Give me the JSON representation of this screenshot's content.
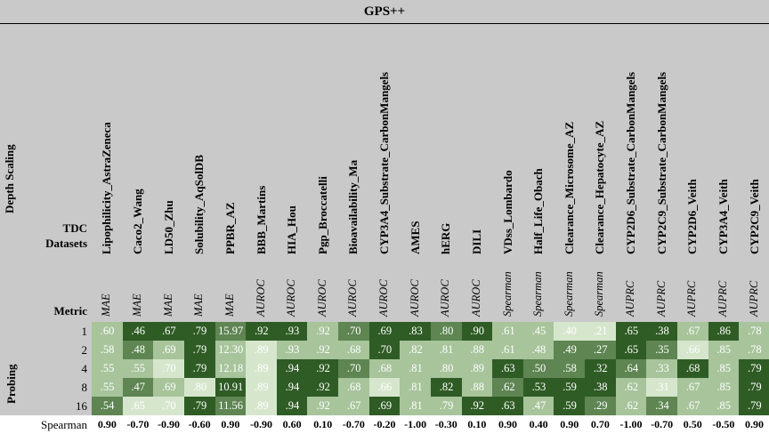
{
  "title": "GPS++",
  "depth_scaling_label": "Depth Scaling",
  "probing_label": "Probing",
  "tdc_datasets_label": "TDC Datasets",
  "metric_label": "Metric",
  "spearman_label": "Spearman",
  "datasets": [
    "Lipophilicity_AstraZeneca",
    "Caco2_Wang",
    "LD50_Zhu",
    "Solubility_AqSolDB",
    "PPBR_AZ",
    "BBB_Martins",
    "HIA_Hou",
    "Pgp_Broccatelli",
    "Bioavailability_Ma",
    "CYP3A4_Substrate_CarbonMangels",
    "AMES",
    "hERG",
    "DILI",
    "VDss_Lombardo",
    "Half_Life_Obach",
    "Clearance_Microsome_AZ",
    "Clearance_Hepatocyte_AZ",
    "CYP2D6_Substrate_CarbonMangels",
    "CYP2C9_Substrate_CarbonMangels",
    "CYP2D6_Veith",
    "CYP3A4_Veith",
    "CYP2C9_Veith"
  ],
  "metrics": [
    "MAE",
    "MAE",
    "MAE",
    "MAE",
    "MAE",
    "AUROC",
    "AUROC",
    "AUROC",
    "AUROC",
    "AUROC",
    "AUROC",
    "AUROC",
    "AUROC",
    "Spearman",
    "Spearman",
    "Spearman",
    "Spearman",
    "AUPRC",
    "AUPRC",
    "AUPRC",
    "AUPRC",
    "AUPRC"
  ],
  "rows": [
    {
      "depth": "1",
      "cells": [
        ".60",
        ".46",
        ".67",
        ".79",
        "15.97",
        ".92",
        ".93",
        ".92",
        ".70",
        ".69",
        ".83",
        ".80",
        ".90",
        ".61",
        ".45",
        ".40",
        ".21",
        ".65",
        ".38",
        ".67",
        ".86",
        ".78"
      ]
    },
    {
      "depth": "2",
      "cells": [
        ".58",
        ".48",
        ".69",
        ".79",
        "12.30",
        ".89",
        ".93",
        ".92",
        ".68",
        ".70",
        ".82",
        ".81",
        ".88",
        ".61",
        ".48",
        ".49",
        ".27",
        ".65",
        ".35",
        ".66",
        ".85",
        ".78"
      ]
    },
    {
      "depth": "4",
      "cells": [
        ".55",
        ".55",
        ".70",
        ".79",
        "12.18",
        ".89",
        ".94",
        ".92",
        ".70",
        ".68",
        ".81",
        ".80",
        ".89",
        ".63",
        ".50",
        ".58",
        ".32",
        ".64",
        ".33",
        ".68",
        ".85",
        ".79"
      ]
    },
    {
      "depth": "8",
      "cells": [
        ".55",
        ".47",
        ".69",
        ".80",
        "10.91",
        ".89",
        ".94",
        ".92",
        ".68",
        ".66",
        ".81",
        ".82",
        ".88",
        ".62",
        ".53",
        ".59",
        ".38",
        ".62",
        ".31",
        ".67",
        ".85",
        ".79"
      ]
    },
    {
      "depth": "16",
      "cells": [
        ".54",
        ".65",
        ".70",
        ".79",
        "11.56",
        ".89",
        ".94",
        ".92",
        ".67",
        ".69",
        ".81",
        ".79",
        ".92",
        ".63",
        ".47",
        ".59",
        ".29",
        ".62",
        ".34",
        ".67",
        ".85",
        ".79"
      ]
    }
  ],
  "shades": [
    [
      2,
      0,
      0,
      0,
      1,
      0,
      0,
      2,
      1,
      0,
      0,
      1,
      0,
      2,
      2,
      3,
      3,
      0,
      0,
      2,
      0,
      2
    ],
    [
      2,
      1,
      2,
      0,
      2,
      3,
      2,
      2,
      2,
      0,
      2,
      2,
      2,
      2,
      2,
      1,
      1,
      0,
      1,
      3,
      2,
      2
    ],
    [
      2,
      2,
      3,
      0,
      2,
      3,
      0,
      0,
      1,
      2,
      2,
      2,
      2,
      0,
      1,
      1,
      0,
      1,
      2,
      0,
      2,
      0
    ],
    [
      2,
      1,
      2,
      3,
      0,
      3,
      0,
      0,
      2,
      3,
      2,
      0,
      2,
      1,
      0,
      0,
      0,
      2,
      3,
      2,
      2,
      0
    ],
    [
      1,
      3,
      3,
      0,
      1,
      3,
      0,
      2,
      2,
      0,
      2,
      2,
      0,
      0,
      2,
      0,
      1,
      2,
      1,
      2,
      2,
      0
    ]
  ],
  "spearman": [
    "0.90",
    "-0.70",
    "-0.90",
    "-0.60",
    "0.90",
    "-0.90",
    "0.60",
    "0.10",
    "-0.70",
    "-0.20",
    "-1.00",
    "-0.30",
    "0.10",
    "0.90",
    "0.40",
    "0.90",
    "0.70",
    "-1.00",
    "-0.70",
    "0.50",
    "-0.50",
    "0.90"
  ],
  "colors": {
    "header_bg": "#c9c9c9",
    "shade0": "#2f5c25",
    "shade1": "#5e8552",
    "shade2": "#a7c49b",
    "shade3": "#d6e6cd"
  }
}
